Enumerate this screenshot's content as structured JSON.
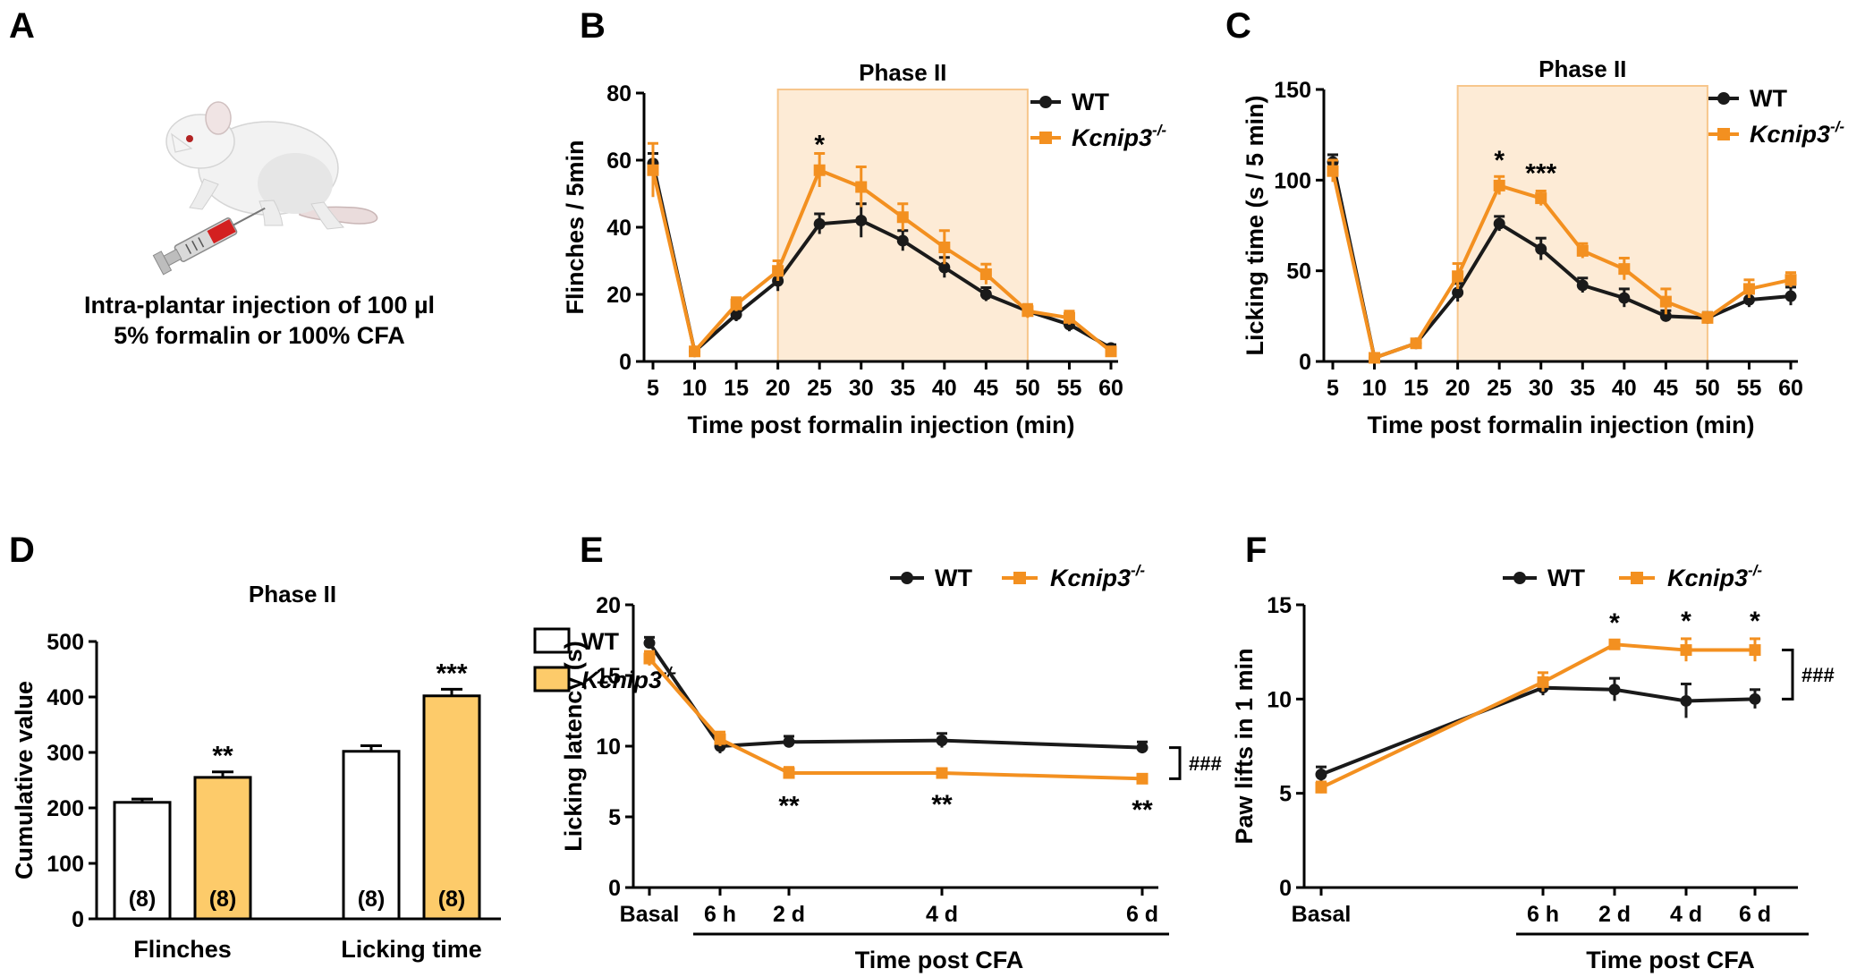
{
  "panel_labels": {
    "a": "A",
    "b": "B",
    "c": "C",
    "d": "D",
    "e": "E",
    "f": "F"
  },
  "panel_a": {
    "caption_line1": "Intra-plantar injection of 100 µl",
    "caption_line2": "5% formalin or 100% CFA"
  },
  "colors": {
    "wt": "#1a1a1a",
    "ko": "#f39020",
    "ko_bar": "#fdcb6a",
    "phase_shade": "#fdebd6",
    "phase_border": "#f7c68c"
  },
  "legend": {
    "wt": "WT",
    "ko_base": "Kcnip3",
    "ko_sup": "-/-"
  },
  "chart_data": [
    {
      "id": "B",
      "type": "line",
      "title": "Phase II",
      "xlabel": "Time post formalin injection (min)",
      "ylabel": "Flinches / 5min",
      "ylim": [
        0,
        80
      ],
      "yticks": [
        0,
        20,
        40,
        60,
        80
      ],
      "x": [
        5,
        10,
        15,
        20,
        25,
        30,
        35,
        40,
        45,
        50,
        55,
        60
      ],
      "phase_range": [
        20,
        50
      ],
      "series": [
        {
          "name": "WT",
          "values": [
            59,
            3,
            14,
            24,
            41,
            42,
            36,
            28,
            20,
            15,
            11,
            4
          ],
          "err": [
            3,
            1,
            2,
            3,
            3,
            5,
            3,
            3,
            2,
            1,
            2,
            1
          ]
        },
        {
          "name": "Kcnip3-/-",
          "values": [
            57,
            3,
            17,
            27,
            57,
            52,
            43,
            34,
            26,
            15,
            13,
            3
          ],
          "err": [
            8,
            1,
            2,
            3,
            5,
            6,
            4,
            5,
            3,
            2,
            2,
            1
          ]
        }
      ],
      "annotations": [
        {
          "x": 25,
          "y": 62,
          "text": "*"
        }
      ]
    },
    {
      "id": "C",
      "type": "line",
      "title": "Phase II",
      "xlabel": "Time post formalin injection (min)",
      "ylabel": "Licking time (s / 5 min)",
      "ylim": [
        0,
        150
      ],
      "yticks": [
        0,
        50,
        100,
        150
      ],
      "x": [
        5,
        10,
        15,
        20,
        25,
        30,
        35,
        40,
        45,
        50,
        55,
        60
      ],
      "phase_range": [
        20,
        50
      ],
      "series": [
        {
          "name": "WT",
          "values": [
            110,
            2,
            10,
            38,
            76,
            62,
            42,
            35,
            25,
            24,
            34,
            36
          ],
          "err": [
            4,
            1,
            2,
            5,
            4,
            6,
            4,
            5,
            3,
            3,
            4,
            5
          ]
        },
        {
          "name": "Kcnip3-/-",
          "values": [
            105,
            2,
            10,
            47,
            97,
            90,
            61,
            51,
            33,
            24,
            40,
            45
          ],
          "err": [
            6,
            1,
            2,
            7,
            5,
            4,
            4,
            6,
            7,
            3,
            5,
            4
          ]
        }
      ],
      "annotations": [
        {
          "x": 25,
          "y": 106,
          "text": "*"
        },
        {
          "x": 30,
          "y": 99,
          "text": "***"
        }
      ]
    },
    {
      "id": "D",
      "type": "bar",
      "title": "Phase II",
      "ylabel": "Cumulative value",
      "ylim": [
        0,
        500
      ],
      "yticks": [
        0,
        100,
        200,
        300,
        400,
        500
      ],
      "categories": [
        "Flinches",
        "Licking time"
      ],
      "series": [
        {
          "name": "WT",
          "values": [
            210,
            302
          ],
          "err": [
            6,
            10
          ],
          "n": [
            "(8)",
            "(8)"
          ]
        },
        {
          "name": "Kcnip3-/-",
          "values": [
            255,
            402
          ],
          "err": [
            10,
            12
          ],
          "n": [
            "(8)",
            "(8)"
          ]
        }
      ],
      "annotations": [
        {
          "text": "**",
          "category": 0,
          "series": 1
        },
        {
          "text": "***",
          "category": 1,
          "series": 1
        }
      ]
    },
    {
      "id": "E",
      "type": "line",
      "xlabel": "Time post CFA",
      "ylabel": "Licking latency (s)",
      "ylim": [
        0,
        20
      ],
      "yticks": [
        0,
        5,
        10,
        15,
        20
      ],
      "categories": [
        "Basal",
        "6 h",
        "2 d",
        "4 d",
        "6 d"
      ],
      "series": [
        {
          "name": "WT",
          "values": [
            17.3,
            10.0,
            10.3,
            10.4,
            9.9
          ],
          "err": [
            0.4,
            0.5,
            0.4,
            0.5,
            0.4
          ]
        },
        {
          "name": "Kcnip3-/-",
          "values": [
            16.2,
            10.5,
            8.1,
            8.1,
            7.7
          ],
          "err": [
            0.5,
            0.5,
            0.4,
            0.3,
            0.3
          ]
        }
      ],
      "annotations": [
        {
          "x": "2 d",
          "text": "**"
        },
        {
          "x": "4 d",
          "text": "**"
        },
        {
          "x": "6 d",
          "text": "**"
        }
      ],
      "bracket_label": "###"
    },
    {
      "id": "F",
      "type": "line",
      "xlabel": "Time post CFA",
      "ylabel": "Paw lifts in 1 min",
      "ylim": [
        0,
        15
      ],
      "yticks": [
        0,
        5,
        10,
        15
      ],
      "categories": [
        "Basal",
        "6 h",
        "2 d",
        "4 d",
        "6 d"
      ],
      "series": [
        {
          "name": "WT",
          "values": [
            6.0,
            10.6,
            10.5,
            9.9,
            10.0
          ],
          "err": [
            0.4,
            0.4,
            0.6,
            0.9,
            0.5
          ]
        },
        {
          "name": "Kcnip3-/-",
          "values": [
            5.3,
            10.9,
            12.9,
            12.6,
            12.6
          ],
          "err": [
            0.3,
            0.5,
            0.2,
            0.6,
            0.6
          ]
        }
      ],
      "annotations": [
        {
          "x": "2 d",
          "text": "*"
        },
        {
          "x": "4 d",
          "text": "*"
        },
        {
          "x": "6 d",
          "text": "*"
        }
      ],
      "bracket_label": "###"
    }
  ]
}
